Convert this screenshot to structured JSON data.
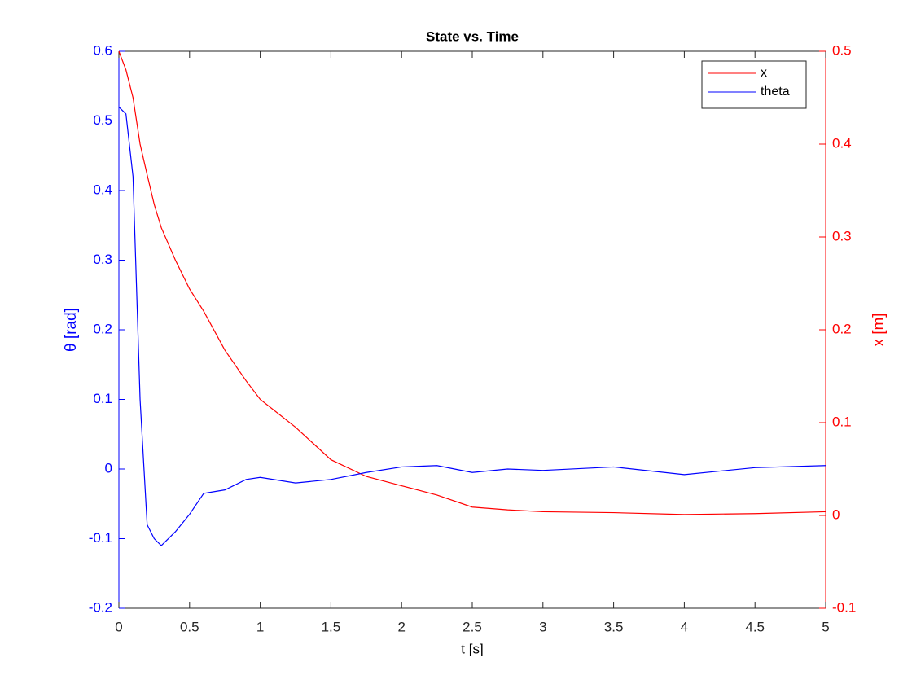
{
  "chart_data": {
    "type": "line",
    "title": "State vs. Time",
    "xlabel": "t [s]",
    "ylabel": "θ [rad]",
    "y2label": "x [m]",
    "x": [
      0,
      0.05,
      0.1,
      0.15,
      0.2,
      0.25,
      0.3,
      0.4,
      0.5,
      0.6,
      0.75,
      0.9,
      1,
      1.25,
      1.5,
      1.75,
      2,
      2.25,
      2.5,
      2.75,
      3,
      3.5,
      4,
      4.5,
      5
    ],
    "series": [
      {
        "name": "x",
        "color": "#ff0000",
        "axis": "y2",
        "values": [
          0.5,
          0.48,
          0.45,
          0.4,
          0.367,
          0.335,
          0.31,
          0.275,
          0.244,
          0.22,
          0.178,
          0.145,
          0.125,
          0.095,
          0.06,
          0.042,
          0.032,
          0.022,
          0.009,
          0.006,
          0.004,
          0.003,
          0.001,
          0.002,
          0.004
        ]
      },
      {
        "name": "theta",
        "color": "#0000ff",
        "axis": "y",
        "values": [
          0.52,
          0.51,
          0.42,
          0.1,
          -0.08,
          -0.1,
          -0.11,
          -0.09,
          -0.065,
          -0.035,
          -0.03,
          -0.015,
          -0.012,
          -0.02,
          -0.015,
          -0.005,
          0.003,
          0.005,
          -0.005,
          0,
          -0.002,
          0.003,
          -0.008,
          0.002,
          0.005
        ]
      }
    ],
    "xlim": [
      0,
      5
    ],
    "xticks": [
      0,
      0.5,
      1,
      1.5,
      2,
      2.5,
      3,
      3.5,
      4,
      4.5,
      5
    ],
    "ylim": [
      -0.2,
      0.6
    ],
    "yticks": [
      -0.2,
      -0.1,
      0,
      0.1,
      0.2,
      0.3,
      0.4,
      0.5,
      0.6
    ],
    "y2lim": [
      -0.1,
      0.5
    ],
    "y2ticks": [
      -0.1,
      0,
      0.1,
      0.2,
      0.3,
      0.4,
      0.5
    ],
    "legend": "top-right",
    "grid": false
  }
}
